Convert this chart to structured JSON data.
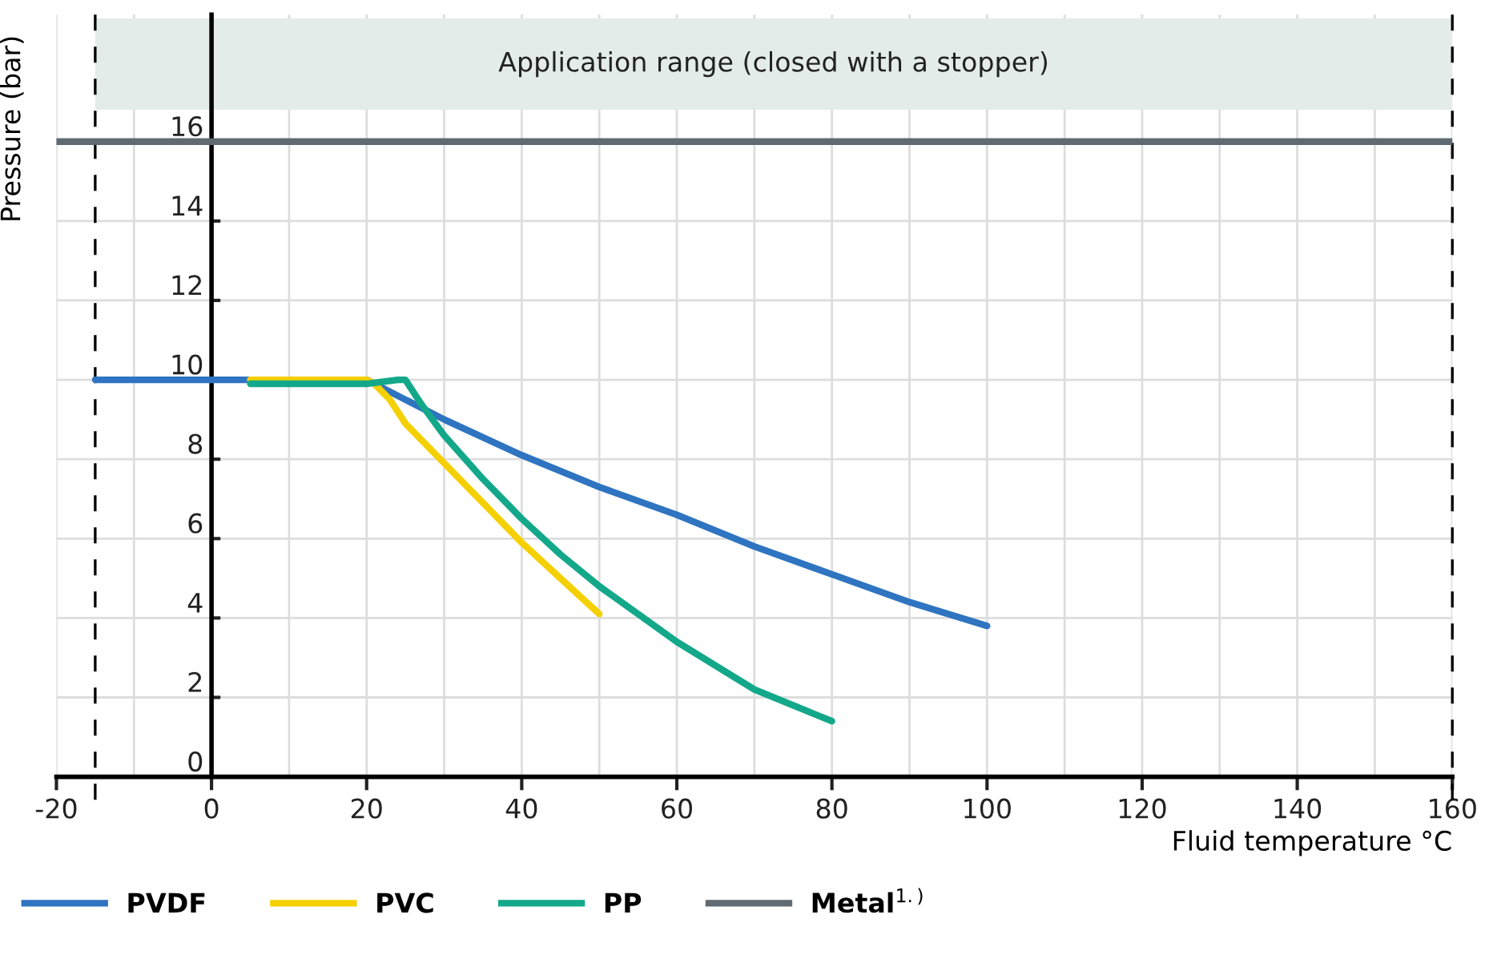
{
  "chart_data": {
    "type": "line",
    "xlabel": "Fluid temperature °C",
    "ylabel": "Pressure (bar)",
    "series": [
      {
        "name": "PVDF",
        "color": "#2f74c0",
        "x": [
          -15,
          0,
          20,
          30,
          40,
          50,
          60,
          70,
          80,
          90,
          100
        ],
        "values": [
          10,
          10,
          10,
          9,
          8.1,
          7.3,
          6.6,
          5.8,
          5.1,
          4.4,
          3.8
        ]
      },
      {
        "name": "PVC",
        "color": "#f5d000",
        "x": [
          5,
          20,
          21,
          23,
          25,
          30,
          35,
          40,
          45,
          50
        ],
        "values": [
          10,
          10,
          9.9,
          9.5,
          8.9,
          7.9,
          6.9,
          5.9,
          5,
          4.1
        ]
      },
      {
        "name": "PP",
        "color": "#14a88a",
        "x": [
          5,
          20,
          24,
          25,
          27,
          30,
          35,
          40,
          45,
          50,
          55,
          60,
          65,
          70,
          75,
          80
        ],
        "values": [
          9.9,
          9.9,
          10,
          10,
          9.4,
          8.6,
          7.5,
          6.5,
          5.6,
          4.8,
          4.1,
          3.4,
          2.8,
          2.2,
          1.8,
          1.4
        ]
      },
      {
        "name": "Metal$^{1.)}$",
        "color": "#5f6a72",
        "x": [
          -20,
          160
        ],
        "values": [
          16,
          16
        ]
      }
    ],
    "xlim": [
      -20,
      160
    ],
    "ylim": [
      0,
      19.2
    ],
    "xticks": [
      -20,
      {
        "value": -10,
        "label": null
      },
      0,
      {
        "value": 10,
        "label": null
      },
      20,
      {
        "value": 30,
        "label": null
      },
      40,
      {
        "value": 50,
        "label": null
      },
      60,
      {
        "value": 70,
        "label": null
      },
      80,
      {
        "value": 90,
        "label": null
      },
      100,
      {
        "value": 110,
        "label": null
      },
      120,
      {
        "value": 130,
        "label": null
      },
      140,
      {
        "value": 150,
        "label": null
      },
      160
    ],
    "yticks": [
      0,
      2,
      4,
      6,
      8,
      10,
      12,
      14,
      16
    ],
    "ref_lines": [
      {
        "axis": "x",
        "value": -15,
        "line_style": "dashed",
        "color": "#000000"
      },
      {
        "axis": "x",
        "value": 160,
        "line_style": "dashed",
        "color": "#000000"
      }
    ],
    "bands": [
      {
        "axis": "x",
        "from": -15,
        "to": 160,
        "label": "Application range (closed with a stopper)",
        "color": "#e3ece9"
      }
    ],
    "grid": true,
    "legend": "bottom",
    "marker": "none",
    "line_style": "solid"
  }
}
